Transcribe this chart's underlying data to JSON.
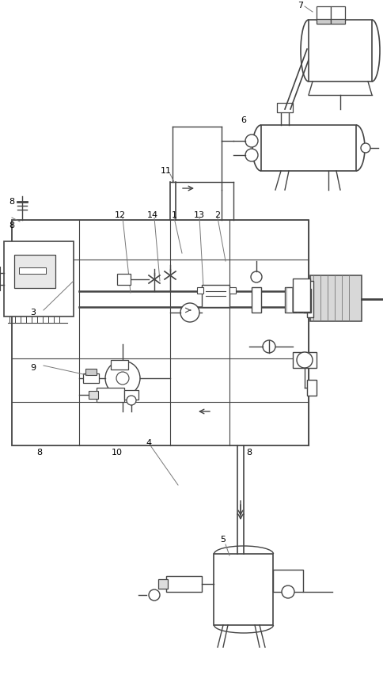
{
  "bg_color": "#ffffff",
  "line_color": "#444444",
  "gray_color": "#777777",
  "fig_width": 4.85,
  "fig_height": 8.67,
  "dpi": 100
}
